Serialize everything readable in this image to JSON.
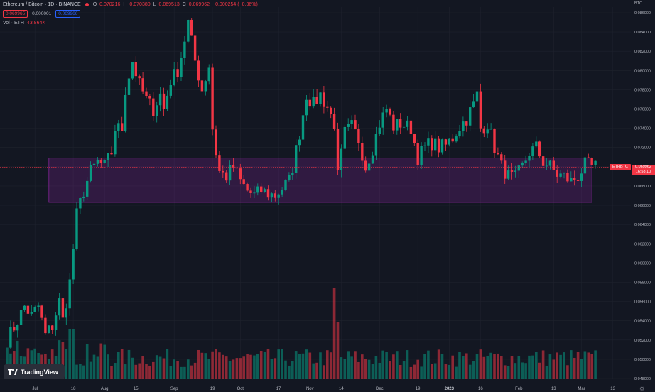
{
  "legend": {
    "title": "Ethereum / Bitcoin · 1D · BINANCE",
    "open_label": "O",
    "open": "0.070216",
    "high_label": "H",
    "high": "0.070380",
    "low_label": "L",
    "low": "0.069513",
    "close_label": "C",
    "close": "0.069962",
    "change": "−0.000254 (−0.36%)",
    "bid": "0.069965",
    "spread": "0.000001",
    "ask": "0.069966",
    "volume_label": "Vol · ETH",
    "volume_value": "43.864K"
  },
  "axis": {
    "unit": "BTC",
    "pair_label": "ETHBTC",
    "last_price": "0.069962",
    "countdown": "16:58:10"
  },
  "logo": {
    "text": "TradingView"
  },
  "colors": {
    "up": "#089981",
    "down": "#f23645",
    "zone": "#9c27b0",
    "bg": "#131722",
    "grid": "#1e222d"
  },
  "chart_data": {
    "type": "candlestick",
    "ylim": [
      0.048,
      0.086
    ],
    "y_ticks": [
      "0.086000",
      "0.084000",
      "0.082000",
      "0.080000",
      "0.078000",
      "0.076000",
      "0.074000",
      "0.072000",
      "0.070000",
      "0.068000",
      "0.066000",
      "0.064000",
      "0.062000",
      "0.060000",
      "0.058000",
      "0.056000",
      "0.054000",
      "0.052000",
      "0.050000",
      "0.048000"
    ],
    "y_tick_values": [
      0.086,
      0.084,
      0.082,
      0.08,
      0.078,
      0.076,
      0.074,
      0.072,
      0.07,
      0.068,
      0.066,
      0.064,
      0.062,
      0.06,
      0.058,
      0.056,
      0.054,
      0.052,
      0.05,
      0.048
    ],
    "x_ticks": [
      "Jul",
      "18",
      "Aug",
      "15",
      "Sep",
      "19",
      "Oct",
      "17",
      "Nov",
      "14",
      "Dec",
      "19",
      "2023",
      "16",
      "Feb",
      "13",
      "Mar",
      "13"
    ],
    "x_tick_index": [
      8,
      19,
      28,
      37,
      48,
      59,
      67,
      78,
      87,
      96,
      107,
      118,
      127,
      136,
      147,
      157,
      165,
      174
    ],
    "zone": {
      "top": 0.0709,
      "bottom": 0.0663,
      "start_index": 12,
      "end_index": 168
    },
    "anchors": [
      [
        0,
        0.052
      ],
      [
        3,
        0.054
      ],
      [
        5,
        0.0555
      ],
      [
        7,
        0.0545
      ],
      [
        9,
        0.0555
      ],
      [
        11,
        0.0525
      ],
      [
        13,
        0.0535
      ],
      [
        15,
        0.056
      ],
      [
        16,
        0.054
      ],
      [
        18,
        0.058
      ],
      [
        20,
        0.065
      ],
      [
        22,
        0.0675
      ],
      [
        24,
        0.0695
      ],
      [
        26,
        0.0705
      ],
      [
        28,
        0.07
      ],
      [
        30,
        0.0715
      ],
      [
        31,
        0.074
      ],
      [
        33,
        0.074
      ],
      [
        34,
        0.078
      ],
      [
        36,
        0.081
      ],
      [
        38,
        0.0785
      ],
      [
        40,
        0.077
      ],
      [
        42,
        0.076
      ],
      [
        44,
        0.0775
      ],
      [
        45,
        0.076
      ],
      [
        47,
        0.079
      ],
      [
        49,
        0.08
      ],
      [
        50,
        0.0815
      ],
      [
        52,
        0.085
      ],
      [
        54,
        0.081
      ],
      [
        56,
        0.078
      ],
      [
        58,
        0.0805
      ],
      [
        59,
        0.074
      ],
      [
        60,
        0.0715
      ],
      [
        61,
        0.0695
      ],
      [
        63,
        0.069
      ],
      [
        65,
        0.07
      ],
      [
        67,
        0.0685
      ],
      [
        69,
        0.0675
      ],
      [
        71,
        0.067
      ],
      [
        73,
        0.0675
      ],
      [
        75,
        0.0672
      ],
      [
        77,
        0.067
      ],
      [
        79,
        0.0678
      ],
      [
        81,
        0.0685
      ],
      [
        82,
        0.07
      ],
      [
        84,
        0.0735
      ],
      [
        86,
        0.0775
      ],
      [
        88,
        0.0765
      ],
      [
        90,
        0.0775
      ],
      [
        92,
        0.0762
      ],
      [
        94,
        0.0745
      ],
      [
        95,
        0.069
      ],
      [
        97,
        0.0735
      ],
      [
        99,
        0.0742
      ],
      [
        101,
        0.0728
      ],
      [
        103,
        0.07
      ],
      [
        105,
        0.072
      ],
      [
        107,
        0.0745
      ],
      [
        109,
        0.076
      ],
      [
        111,
        0.0742
      ],
      [
        113,
        0.0745
      ],
      [
        116,
        0.074
      ],
      [
        118,
        0.071
      ],
      [
        120,
        0.072
      ],
      [
        122,
        0.0725
      ],
      [
        124,
        0.072
      ],
      [
        126,
        0.0722
      ],
      [
        128,
        0.073
      ],
      [
        130,
        0.0742
      ],
      [
        132,
        0.075
      ],
      [
        134,
        0.0765
      ],
      [
        135,
        0.0775
      ],
      [
        136,
        0.074
      ],
      [
        138,
        0.0745
      ],
      [
        140,
        0.072
      ],
      [
        142,
        0.07
      ],
      [
        144,
        0.069
      ],
      [
        146,
        0.0688
      ],
      [
        148,
        0.07
      ],
      [
        150,
        0.0715
      ],
      [
        152,
        0.072
      ],
      [
        154,
        0.0705
      ],
      [
        156,
        0.07
      ],
      [
        158,
        0.0692
      ],
      [
        160,
        0.069
      ],
      [
        162,
        0.0685
      ],
      [
        164,
        0.069
      ],
      [
        166,
        0.0702
      ],
      [
        168,
        0.07
      ]
    ],
    "volume_peak_index": 94
  }
}
